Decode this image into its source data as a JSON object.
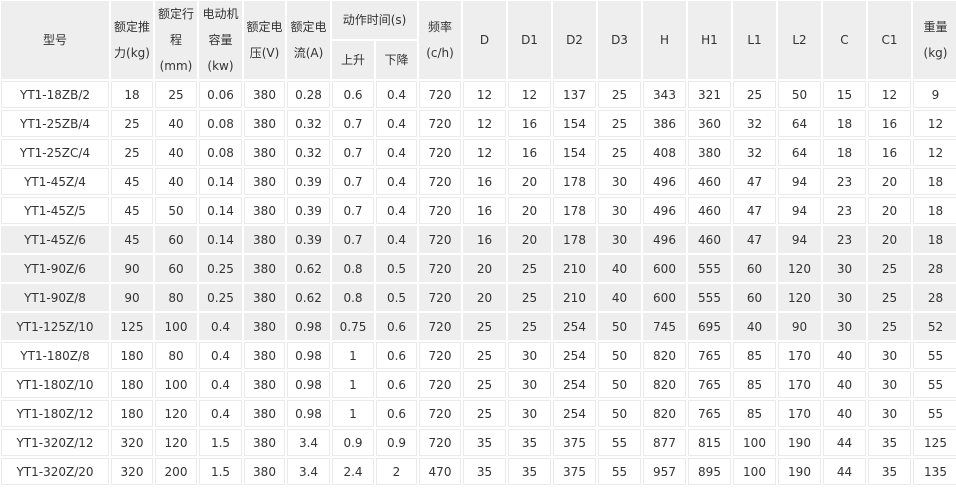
{
  "table": {
    "headers": {
      "model": "型号",
      "thrust": [
        "额定推",
        "力(kg)"
      ],
      "stroke": [
        "额定行",
        "程",
        "(mm)"
      ],
      "motor": [
        "电动机",
        "容量",
        "(kw)"
      ],
      "voltage": [
        "额定电",
        "压(V)"
      ],
      "current": [
        "额定电",
        "流(A)"
      ],
      "action_time": "动作时间(s)",
      "up": "上升",
      "down": "下降",
      "frequency": [
        "频率",
        "(c/h)"
      ],
      "dims": [
        "D",
        "D1",
        "D2",
        "D3",
        "H",
        "H1",
        "L1",
        "L2",
        "C",
        "C1"
      ],
      "weight": [
        "重量",
        "(kg)"
      ]
    },
    "header_bg": "#eeeeee",
    "highlight_bg": "#eeeeee",
    "rows": [
      {
        "cells": [
          "YT1-18ZB/2",
          "18",
          "25",
          "0.06",
          "380",
          "0.28",
          "0.6",
          "0.4",
          "720",
          "12",
          "12",
          "137",
          "25",
          "343",
          "321",
          "25",
          "50",
          "15",
          "12",
          "9"
        ],
        "highlight": false
      },
      {
        "cells": [
          "YT1-25ZB/4",
          "25",
          "40",
          "0.08",
          "380",
          "0.32",
          "0.7",
          "0.4",
          "720",
          "12",
          "16",
          "154",
          "25",
          "386",
          "360",
          "32",
          "64",
          "18",
          "16",
          "12"
        ],
        "highlight": false
      },
      {
        "cells": [
          "YT1-25ZC/4",
          "25",
          "40",
          "0.08",
          "380",
          "0.32",
          "0.7",
          "0.4",
          "720",
          "12",
          "16",
          "154",
          "25",
          "408",
          "380",
          "32",
          "64",
          "18",
          "16",
          "12"
        ],
        "highlight": false
      },
      {
        "cells": [
          "YT1-45Z/4",
          "45",
          "40",
          "0.14",
          "380",
          "0.39",
          "0.7",
          "0.4",
          "720",
          "16",
          "20",
          "178",
          "30",
          "496",
          "460",
          "47",
          "94",
          "23",
          "20",
          "18"
        ],
        "highlight": false
      },
      {
        "cells": [
          "YT1-45Z/5",
          "45",
          "50",
          "0.14",
          "380",
          "0.39",
          "0.7",
          "0.4",
          "720",
          "16",
          "20",
          "178",
          "30",
          "496",
          "460",
          "47",
          "94",
          "23",
          "20",
          "18"
        ],
        "highlight": false
      },
      {
        "cells": [
          "YT1-45Z/6",
          "45",
          "60",
          "0.14",
          "380",
          "0.39",
          "0.7",
          "0.4",
          "720",
          "16",
          "20",
          "178",
          "30",
          "496",
          "460",
          "47",
          "94",
          "23",
          "20",
          "18"
        ],
        "highlight": true
      },
      {
        "cells": [
          "YT1-90Z/6",
          "90",
          "60",
          "0.25",
          "380",
          "0.62",
          "0.8",
          "0.5",
          "720",
          "20",
          "25",
          "210",
          "40",
          "600",
          "555",
          "60",
          "120",
          "30",
          "25",
          "28"
        ],
        "highlight": true
      },
      {
        "cells": [
          "YT1-90Z/8",
          "90",
          "80",
          "0.25",
          "380",
          "0.62",
          "0.8",
          "0.5",
          "720",
          "20",
          "25",
          "210",
          "40",
          "600",
          "555",
          "60",
          "120",
          "30",
          "25",
          "28"
        ],
        "highlight": true
      },
      {
        "cells": [
          "YT1-125Z/10",
          "125",
          "100",
          "0.4",
          "380",
          "0.98",
          "0.75",
          "0.6",
          "720",
          "25",
          "25",
          "254",
          "50",
          "745",
          "695",
          "40",
          "90",
          "30",
          "25",
          "52"
        ],
        "highlight": true
      },
      {
        "cells": [
          "YT1-180Z/8",
          "180",
          "80",
          "0.4",
          "380",
          "0.98",
          "1",
          "0.6",
          "720",
          "25",
          "30",
          "254",
          "50",
          "820",
          "765",
          "85",
          "170",
          "40",
          "30",
          "55"
        ],
        "highlight": false
      },
      {
        "cells": [
          "YT1-180Z/10",
          "180",
          "100",
          "0.4",
          "380",
          "0.98",
          "1",
          "0.6",
          "720",
          "25",
          "30",
          "254",
          "50",
          "820",
          "765",
          "85",
          "170",
          "40",
          "30",
          "55"
        ],
        "highlight": false
      },
      {
        "cells": [
          "YT1-180Z/12",
          "180",
          "120",
          "0.4",
          "380",
          "0.98",
          "1",
          "0.6",
          "720",
          "25",
          "30",
          "254",
          "50",
          "820",
          "765",
          "85",
          "170",
          "40",
          "30",
          "55"
        ],
        "highlight": false
      },
      {
        "cells": [
          "YT1-320Z/12",
          "320",
          "120",
          "1.5",
          "380",
          "3.4",
          "0.9",
          "0.9",
          "720",
          "35",
          "35",
          "375",
          "55",
          "877",
          "815",
          "100",
          "190",
          "44",
          "35",
          "125"
        ],
        "highlight": false
      },
      {
        "cells": [
          "YT1-320Z/20",
          "320",
          "200",
          "1.5",
          "380",
          "3.4",
          "2.4",
          "2",
          "470",
          "35",
          "35",
          "375",
          "55",
          "957",
          "895",
          "100",
          "190",
          "44",
          "35",
          "135"
        ],
        "highlight": false
      }
    ]
  }
}
